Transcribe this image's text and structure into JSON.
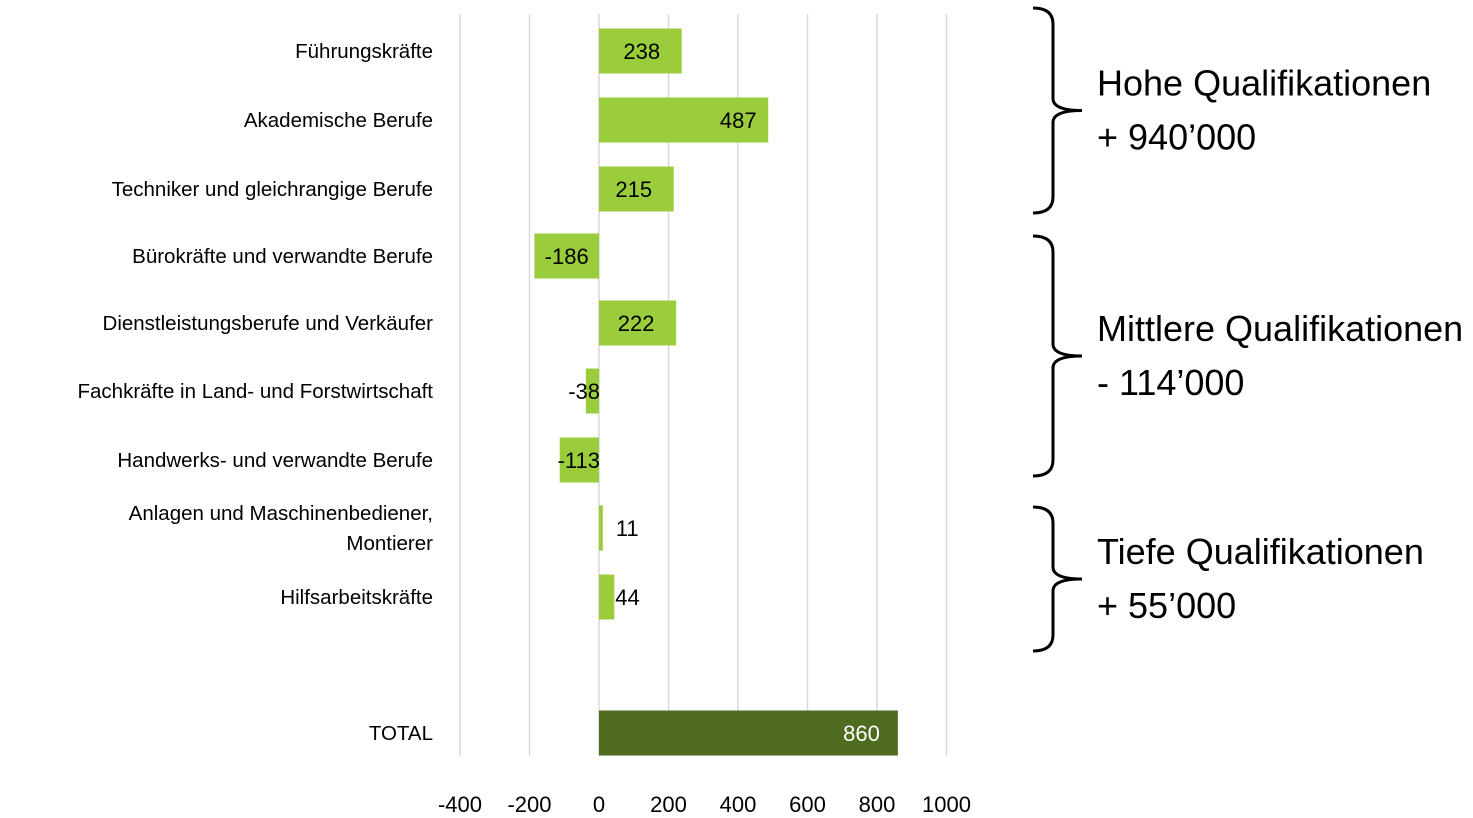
{
  "chart_data": {
    "type": "bar",
    "orientation": "horizontal",
    "title": "",
    "xlabel": "",
    "ylabel": "",
    "xlim": [
      -400,
      1000
    ],
    "x_ticks": [
      -400,
      -200,
      0,
      200,
      400,
      600,
      800,
      1000
    ],
    "x_tick_labels": [
      "-400",
      "-200",
      "0",
      "200",
      "400",
      "600",
      "800",
      "1000"
    ],
    "grid": "vertical",
    "legend": "none",
    "categories": [
      [
        "Führungskräfte"
      ],
      [
        "Akademische Berufe"
      ],
      [
        "Techniker und gleichrangige Berufe"
      ],
      [
        "Bürokräfte und verwandte Berufe"
      ],
      [
        "Dienstleistungsberufe und Verkäufer"
      ],
      [
        "Fachkräfte in Land- und Forstwirtschaft"
      ],
      [
        "Handwerks- und verwandte Berufe"
      ],
      [
        "Anlagen und Maschinenbediener,",
        "Montierer"
      ],
      [
        "Hilfsarbeitskräfte"
      ],
      [
        "TOTAL"
      ]
    ],
    "values": [
      238,
      487,
      215,
      -186,
      222,
      -38,
      -113,
      11,
      44,
      860
    ],
    "value_labels": [
      "238",
      "487",
      "215",
      "-186",
      "222",
      "-38",
      "-113",
      "11",
      "44",
      "860"
    ],
    "colors": {
      "bar": "#9ACD3C",
      "total_bar": "#4E6B1F",
      "grid": "#D9D9D9",
      "total_label": "#FFFFFF",
      "label": "#000000"
    },
    "annotations": [
      {
        "lines": [
          "Hohe Qualifikationen",
          " + 940’000"
        ],
        "range": [
          0,
          2
        ]
      },
      {
        "lines": [
          "Mittlere Qualifikationen",
          "- 114’000"
        ],
        "range": [
          3,
          6
        ]
      },
      {
        "lines": [
          "Tiefe Qualifikationen",
          "+ 55’000"
        ],
        "range": [
          7,
          8
        ]
      }
    ]
  }
}
